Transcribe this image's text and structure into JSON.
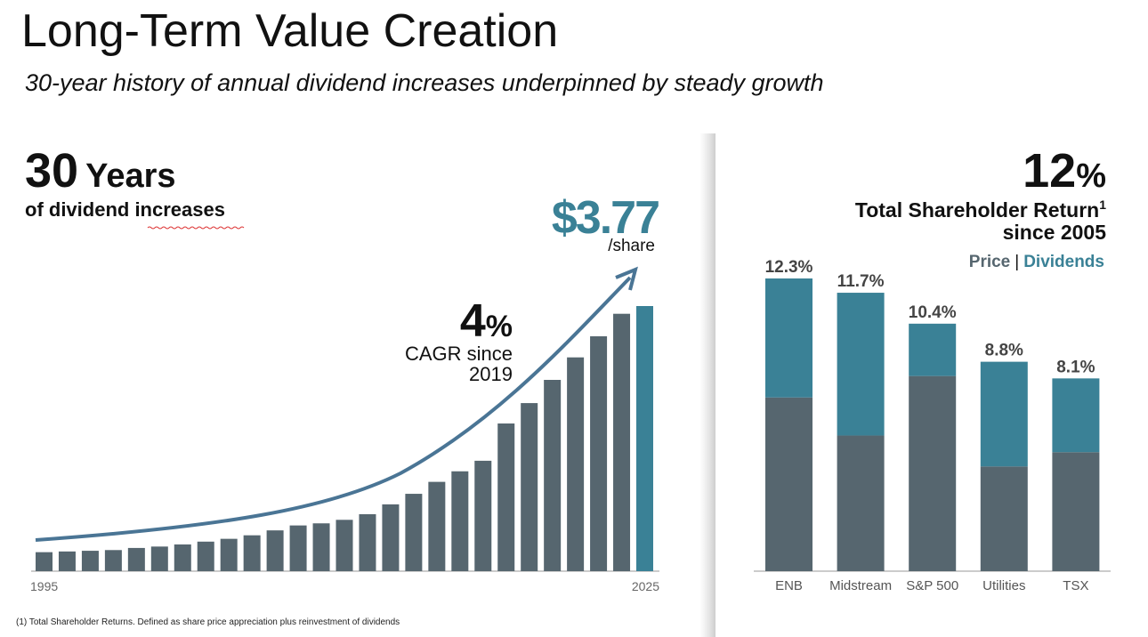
{
  "title": "Long-Term Value Creation",
  "subtitle": "30-year history of annual dividend increases underpinned by steady growth",
  "footnote": "(1) Total Shareholder Returns. Defined as share price appreciation plus reinvestment of dividends",
  "chart_data": [
    {
      "type": "bar",
      "headline_number": 30,
      "headline_unit": "Years",
      "headline_caption": "of dividend increases",
      "annotation_unit": "/share",
      "cagr_value": 4,
      "cagr_unit": "%",
      "cagr_caption": [
        "CAGR since",
        "2019"
      ],
      "categories": [
        "1995",
        null,
        null,
        null,
        null,
        null,
        null,
        null,
        null,
        null,
        null,
        null,
        null,
        null,
        null,
        null,
        null,
        null,
        null,
        null,
        null,
        null,
        null,
        null,
        null,
        null,
        "2025"
      ],
      "values": [
        0.27,
        0.28,
        0.29,
        0.3,
        0.33,
        0.35,
        0.38,
        0.42,
        0.46,
        0.51,
        0.58,
        0.65,
        0.68,
        0.73,
        0.81,
        0.95,
        1.1,
        1.27,
        1.42,
        1.57,
        2.1,
        2.39,
        2.72,
        3.04,
        3.34,
        3.66,
        3.77
      ],
      "value_labels": [
        null,
        null,
        null,
        null,
        null,
        null,
        null,
        null,
        null,
        null,
        null,
        null,
        null,
        null,
        null,
        null,
        null,
        null,
        null,
        null,
        null,
        null,
        null,
        null,
        null,
        null,
        "$3.77"
      ],
      "colors": [
        "#56666f",
        "#56666f",
        "#56666f",
        "#56666f",
        "#56666f",
        "#56666f",
        "#56666f",
        "#56666f",
        "#56666f",
        "#56666f",
        "#56666f",
        "#56666f",
        "#56666f",
        "#56666f",
        "#56666f",
        "#56666f",
        "#56666f",
        "#56666f",
        "#56666f",
        "#56666f",
        "#56666f",
        "#56666f",
        "#56666f",
        "#56666f",
        "#56666f",
        "#56666f",
        "#3a8196"
      ]
    },
    {
      "type": "stacked_bar",
      "headline_number": 12,
      "headline_unit": "%",
      "headline_caption": "Total Shareholder Return",
      "footnote_mark": 1,
      "headline_caption_2": "since 2005",
      "legend_separator": "|",
      "categories": [
        "ENB",
        "Midstream",
        "S&P 500",
        "Utilities",
        "TSX"
      ],
      "series": [
        {
          "name": "Price",
          "color": "#56666f",
          "values": [
            7.3,
            5.7,
            8.2,
            4.4,
            5.0
          ]
        },
        {
          "name": "Dividends",
          "color": "#3a8196",
          "values": [
            5.0,
            6.0,
            2.2,
            4.4,
            3.1
          ]
        }
      ],
      "totals": {
        "values": [
          12.3,
          11.7,
          10.4,
          8.8,
          8.1
        ],
        "value_labels": [
          "12.3%",
          "11.7%",
          "10.4%",
          "8.8%",
          "8.1%"
        ]
      }
    }
  ]
}
